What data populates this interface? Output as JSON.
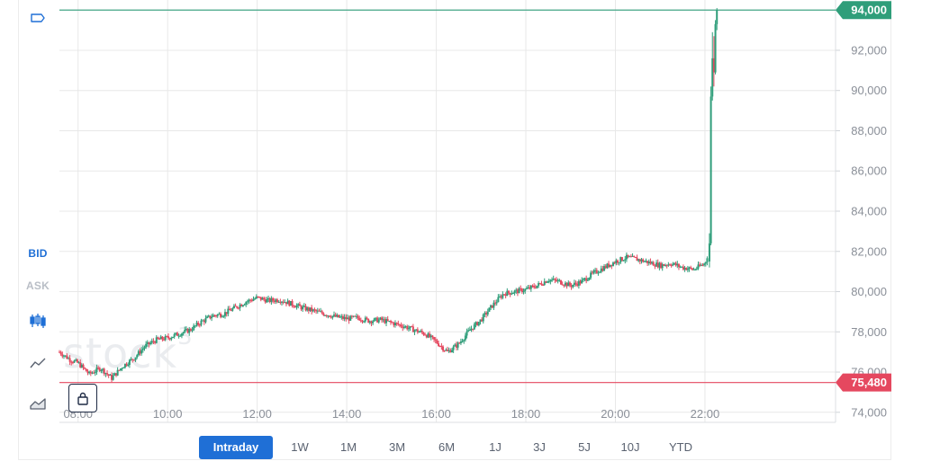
{
  "toolbar": {
    "items": [
      {
        "name": "flag-icon"
      },
      {
        "label": "BID",
        "state": "active"
      },
      {
        "label": "ASK",
        "state": "inactive"
      },
      {
        "name": "candlestick-icon"
      },
      {
        "name": "line-chart-icon"
      },
      {
        "name": "area-chart-icon"
      }
    ]
  },
  "watermark": {
    "text": "stock",
    "sup": "3"
  },
  "lock": {
    "name": "lock-icon"
  },
  "ranges": [
    "Intraday",
    "1W",
    "1M",
    "3M",
    "6M",
    "1J",
    "3J",
    "5J",
    "10J",
    "YTD"
  ],
  "active_range": "Intraday",
  "colors": {
    "up": "#2f9e7a",
    "down": "#e5485f",
    "high_line": "#2f9e7a",
    "low_line": "#e5485f",
    "accent": "#1f6fd6",
    "grid": "#e8e8e8",
    "axis_text": "#8a8f98"
  },
  "chart_data": {
    "type": "candlestick",
    "x_ticks": [
      "08:00",
      "10:00",
      "12:00",
      "14:00",
      "16:00",
      "18:00",
      "20:00",
      "22:00"
    ],
    "y_ticks": [
      "74,000",
      "76,000",
      "78,000",
      "80,000",
      "82,000",
      "84,000",
      "86,000",
      "88,000",
      "90,000",
      "92,000",
      "94,000"
    ],
    "ylim": [
      73500,
      94500
    ],
    "xlim": [
      "07:35",
      "24:55"
    ],
    "high_label": "94,000",
    "low_label": "75,480",
    "high_value": 94000,
    "low_value": 75480,
    "price_path": [
      [
        "07:35",
        77000
      ],
      [
        "07:50",
        76600
      ],
      [
        "08:00",
        76450
      ],
      [
        "08:15",
        75900
      ],
      [
        "08:30",
        76200
      ],
      [
        "08:45",
        75700
      ],
      [
        "09:00",
        76300
      ],
      [
        "09:15",
        76700
      ],
      [
        "09:30",
        77300
      ],
      [
        "09:45",
        77600
      ],
      [
        "10:00",
        77700
      ],
      [
        "10:15",
        77900
      ],
      [
        "10:30",
        78100
      ],
      [
        "10:45",
        78500
      ],
      [
        "11:00",
        78800
      ],
      [
        "11:15",
        78900
      ],
      [
        "11:30",
        79200
      ],
      [
        "11:45",
        79500
      ],
      [
        "12:00",
        79700
      ],
      [
        "12:15",
        79550
      ],
      [
        "12:30",
        79600
      ],
      [
        "12:45",
        79400
      ],
      [
        "13:00",
        79200
      ],
      [
        "13:15",
        79050
      ],
      [
        "13:30",
        78900
      ],
      [
        "13:45",
        78750
      ],
      [
        "14:00",
        78650
      ],
      [
        "14:15",
        78700
      ],
      [
        "14:30",
        78550
      ],
      [
        "14:45",
        78600
      ],
      [
        "15:00",
        78450
      ],
      [
        "15:15",
        78300
      ],
      [
        "15:30",
        78100
      ],
      [
        "15:45",
        77900
      ],
      [
        "16:00",
        77500
      ],
      [
        "16:15",
        77000
      ],
      [
        "16:30",
        77400
      ],
      [
        "16:45",
        78100
      ],
      [
        "17:00",
        78600
      ],
      [
        "17:15",
        79300
      ],
      [
        "17:30",
        79900
      ],
      [
        "17:45",
        80000
      ],
      [
        "18:00",
        80100
      ],
      [
        "18:15",
        80300
      ],
      [
        "18:30",
        80600
      ],
      [
        "18:45",
        80500
      ],
      [
        "19:00",
        80300
      ],
      [
        "19:15",
        80500
      ],
      [
        "19:30",
        80900
      ],
      [
        "19:45",
        81200
      ],
      [
        "20:00",
        81500
      ],
      [
        "20:15",
        81700
      ],
      [
        "20:30",
        81600
      ],
      [
        "20:45",
        81450
      ],
      [
        "21:00",
        81300
      ],
      [
        "21:15",
        81400
      ],
      [
        "21:30",
        81200
      ],
      [
        "21:45",
        81100
      ],
      [
        "22:00",
        81400
      ],
      [
        "22:05",
        82000
      ],
      [
        "22:10",
        89600
      ],
      [
        "22:13",
        92600
      ],
      [
        "22:15",
        91400
      ],
      [
        "22:18",
        93300
      ],
      [
        "22:20",
        94000
      ]
    ]
  }
}
